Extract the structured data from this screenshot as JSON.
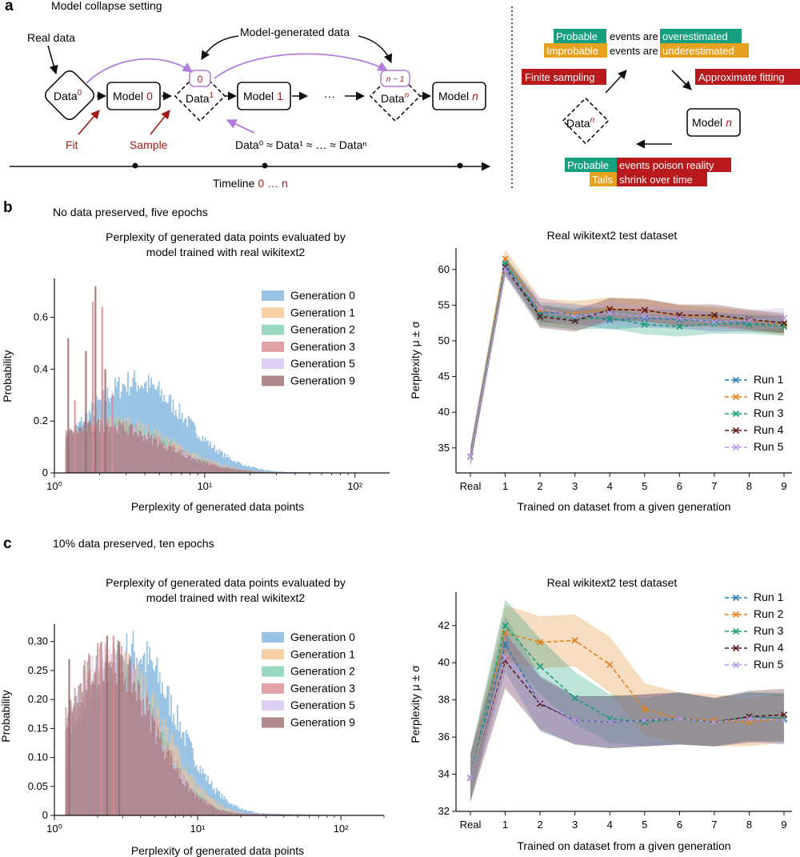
{
  "panels": {
    "a": {
      "label": "a",
      "heading": "Model collapse setting",
      "real_data": "Real data",
      "model_generated": "Model-generated data",
      "data_word": "Data",
      "model_word": "Model",
      "sup0": "0",
      "sup1": "1",
      "supn": "n",
      "diamond_tag_0": "0",
      "diamond_tag_n1": "n − 1",
      "idx0": "0",
      "idx1": "1",
      "idxn": "n",
      "ellipsis": "···",
      "fit": "Fit",
      "sample": "Sample",
      "approx_eq": "Data⁰ ≈ Data¹ ≈ … ≈ Dataⁿ",
      "timeline_word": "Timeline",
      "timeline_range": "0 … n",
      "right": {
        "probable": "Probable",
        "events_are_1": "events are",
        "overestimated": "overestimated",
        "improbable": "Improbable",
        "events_are_2": "events are",
        "underestimated": "underestimated",
        "finite_sampling": "Finite sampling",
        "approximate_fitting": "Approximate fitting",
        "data_n": "Data",
        "model_n": "Model",
        "n": "n",
        "probable2": "Probable",
        "poison": "events poison reality",
        "tails": "Tails",
        "shrink": "shrink over time"
      }
    },
    "b": {
      "label": "b",
      "heading": "No data preserved, five epochs",
      "hist_title_1": "Perplexity of generated data points evaluated by",
      "hist_title_2": "model trained with real wikitext2",
      "hist_xlabel": "Perplexity of generated data points",
      "hist_ylabel": "Probability",
      "line_title": "Real wikitext2 test dataset",
      "line_xlabel": "Trained on dataset from a given generation",
      "line_ylabel": "Perplexity μ ± σ"
    },
    "c": {
      "label": "c",
      "heading": "10% data preserved, ten epochs",
      "hist_title_1": "Perplexity of generated data points evaluated by",
      "hist_title_2": "model trained with real wikitext2",
      "hist_xlabel": "Perplexity of generated data points",
      "hist_ylabel": "Probability",
      "line_title": "Real wikitext2 test dataset",
      "line_xlabel": "Trained on dataset from a given generation",
      "line_ylabel": "Perplexity μ ± σ"
    }
  },
  "colors": {
    "purple_arrow": "#b27ddc",
    "dark_red": "#a11a1a",
    "teal_tag": "#17a07f",
    "orange_tag": "#e6a11f",
    "red_tag": "#b8191c",
    "run_colors": [
      "#2f7bb5",
      "#e0821e",
      "#1a9e77",
      "#5a1a1a",
      "#b79be0"
    ],
    "gen_colors": [
      "#7fb3dc",
      "#f6c48f",
      "#7fd0b3",
      "#d98b91",
      "#d6c4f1",
      "#9b6b6b"
    ]
  },
  "chart_data": [
    {
      "id": "b-hist",
      "type": "histogram",
      "title": "Perplexity of generated data points evaluated by model trained with real wikitext2",
      "xlabel": "Perplexity of generated data points",
      "ylabel": "Probability",
      "xscale": "log",
      "xlim": [
        1,
        170
      ],
      "ylim": [
        0,
        0.75
      ],
      "xticks": [
        "10⁰",
        "10¹",
        "10²"
      ],
      "yticks": [
        "0",
        "0.2",
        "0.4",
        "0.6"
      ],
      "legend_position": "top-right",
      "series": [
        {
          "name": "Generation 0",
          "mode": 3.4,
          "peak": 0.36,
          "width": 0.33
        },
        {
          "name": "Generation 1",
          "mode": 2.6,
          "peak": 0.2,
          "width": 0.36
        },
        {
          "name": "Generation 2",
          "mode": 2.4,
          "peak": 0.19,
          "width": 0.37
        },
        {
          "name": "Generation 3",
          "mode": 2.3,
          "peak": 0.19,
          "width": 0.38
        },
        {
          "name": "Generation 5",
          "mode": 2.2,
          "peak": 0.18,
          "width": 0.38
        },
        {
          "name": "Generation 9",
          "mode": 2.1,
          "peak": 0.19,
          "width": 0.38
        }
      ],
      "spikes": [
        [
          1.22,
          0.52
        ],
        [
          1.35,
          0.28
        ],
        [
          1.6,
          0.47
        ],
        [
          1.78,
          0.66
        ],
        [
          1.85,
          0.72
        ],
        [
          2.05,
          0.64
        ],
        [
          2.15,
          0.4
        ],
        [
          2.4,
          0.3
        ]
      ]
    },
    {
      "id": "b-line",
      "type": "line",
      "title": "Real wikitext2 test dataset",
      "xlabel": "Trained on dataset from a given generation",
      "ylabel": "Perplexity μ ± σ",
      "categories": [
        "Real",
        "1",
        "2",
        "3",
        "4",
        "5",
        "6",
        "7",
        "8",
        "9"
      ],
      "ylim": [
        31.5,
        63
      ],
      "yticks": [
        35,
        40,
        45,
        50,
        55,
        60
      ],
      "legend_position": "bottom-right",
      "series": [
        {
          "name": "Run 1",
          "values": [
            33.8,
            60.5,
            54.0,
            53.8,
            52.9,
            53.2,
            53.0,
            52.7,
            52.5,
            52.3
          ],
          "std": [
            1.3,
            1.2,
            1.4,
            1.4,
            1.3,
            1.3,
            1.3,
            1.3,
            1.2,
            1.2
          ]
        },
        {
          "name": "Run 2",
          "values": [
            33.8,
            61.5,
            54.3,
            53.8,
            54.5,
            54.3,
            53.5,
            53.3,
            52.8,
            52.2
          ],
          "std": [
            1.3,
            1.3,
            1.6,
            1.8,
            1.6,
            1.5,
            1.5,
            1.4,
            1.4,
            1.4
          ]
        },
        {
          "name": "Run 3",
          "values": [
            33.8,
            60.8,
            53.6,
            53.1,
            53.2,
            52.3,
            52.0,
            52.4,
            52.3,
            52.0
          ],
          "std": [
            1.3,
            1.2,
            1.5,
            1.5,
            1.5,
            1.4,
            1.4,
            1.4,
            1.3,
            1.3
          ]
        },
        {
          "name": "Run 4",
          "values": [
            33.8,
            60.3,
            53.4,
            52.8,
            54.4,
            54.3,
            53.6,
            53.6,
            53.0,
            52.5
          ],
          "std": [
            1.3,
            1.2,
            1.6,
            1.5,
            1.6,
            1.6,
            1.5,
            1.5,
            1.4,
            1.4
          ]
        },
        {
          "name": "Run 5",
          "values": [
            33.8,
            60.1,
            54.6,
            53.4,
            53.9,
            53.4,
            53.2,
            52.6,
            52.9,
            53.2
          ],
          "std": [
            1.3,
            1.2,
            1.5,
            1.5,
            1.5,
            1.5,
            1.4,
            1.4,
            1.4,
            1.4
          ]
        }
      ]
    },
    {
      "id": "c-hist",
      "type": "histogram",
      "title": "Perplexity of generated data points evaluated by model trained with real wikitext2",
      "xlabel": "Perplexity of generated data points",
      "ylabel": "Probability",
      "xscale": "log",
      "xlim": [
        1,
        200
      ],
      "ylim": [
        0,
        0.33
      ],
      "xticks": [
        "10⁰",
        "10¹",
        "10²"
      ],
      "yticks": [
        "0",
        "0.05",
        "0.10",
        "0.15",
        "0.20",
        "0.25",
        "0.30"
      ],
      "legend_position": "top-right",
      "series": [
        {
          "name": "Generation 0",
          "mode": 3.5,
          "peak": 0.29,
          "width": 0.3
        },
        {
          "name": "Generation 1",
          "mode": 2.9,
          "peak": 0.26,
          "width": 0.3
        },
        {
          "name": "Generation 2",
          "mode": 2.6,
          "peak": 0.25,
          "width": 0.3
        },
        {
          "name": "Generation 3",
          "mode": 2.5,
          "peak": 0.27,
          "width": 0.3
        },
        {
          "name": "Generation 5",
          "mode": 2.4,
          "peak": 0.27,
          "width": 0.3
        },
        {
          "name": "Generation 9",
          "mode": 2.35,
          "peak": 0.28,
          "width": 0.3
        }
      ],
      "spikes": [
        [
          1.25,
          0.27
        ],
        [
          2.1,
          0.3
        ],
        [
          2.3,
          0.31
        ],
        [
          2.55,
          0.31
        ],
        [
          2.8,
          0.3
        ]
      ]
    },
    {
      "id": "c-line",
      "type": "line",
      "title": "Real wikitext2 test dataset",
      "xlabel": "Trained on dataset from a given generation",
      "ylabel": "Perplexity μ ± σ",
      "categories": [
        "Real",
        "1",
        "2",
        "3",
        "4",
        "5",
        "6",
        "7",
        "8",
        "9"
      ],
      "ylim": [
        32,
        43.8
      ],
      "yticks": [
        32,
        34,
        36,
        38,
        40,
        42
      ],
      "legend_position": "top-right",
      "series": [
        {
          "name": "Run 1",
          "values": [
            33.8,
            41.0,
            37.8,
            36.9,
            36.8,
            36.9,
            37.0,
            36.8,
            37.1,
            37.0
          ],
          "std": [
            1.3,
            1.5,
            1.5,
            1.3,
            1.4,
            1.4,
            1.4,
            1.3,
            1.3,
            1.4
          ]
        },
        {
          "name": "Run 2",
          "values": [
            33.8,
            41.6,
            41.1,
            41.2,
            39.9,
            37.5,
            37.0,
            36.9,
            36.8,
            37.0
          ],
          "std": [
            1.3,
            1.5,
            1.4,
            1.4,
            1.5,
            1.4,
            1.4,
            1.4,
            1.3,
            1.3
          ]
        },
        {
          "name": "Run 3",
          "values": [
            33.8,
            42.0,
            39.8,
            38.1,
            37.0,
            36.8,
            37.0,
            36.8,
            37.1,
            37.0
          ],
          "std": [
            1.3,
            1.4,
            1.5,
            1.4,
            1.3,
            1.3,
            1.4,
            1.3,
            1.3,
            1.3
          ]
        },
        {
          "name": "Run 4",
          "values": [
            33.8,
            40.1,
            37.8,
            36.9,
            36.8,
            36.9,
            37.0,
            36.8,
            37.1,
            37.2
          ],
          "std": [
            1.3,
            1.5,
            1.4,
            1.3,
            1.4,
            1.4,
            1.4,
            1.3,
            1.4,
            1.4
          ]
        },
        {
          "name": "Run 5",
          "values": [
            33.8,
            40.3,
            37.9,
            36.9,
            36.8,
            36.9,
            37.0,
            36.8,
            37.0,
            36.9
          ],
          "std": [
            1.3,
            1.5,
            1.4,
            1.3,
            1.3,
            1.4,
            1.4,
            1.3,
            1.3,
            1.3
          ]
        }
      ]
    }
  ]
}
